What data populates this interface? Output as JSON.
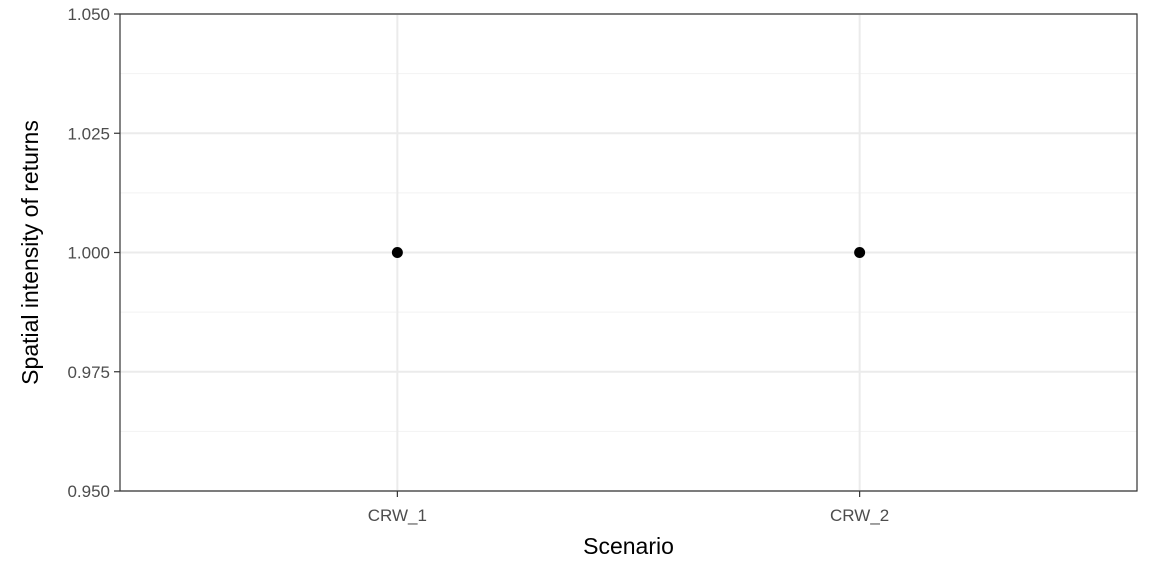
{
  "chart_data": {
    "type": "scatter",
    "title": "",
    "xlabel": "Scenario",
    "ylabel": "Spatial intensity of returns",
    "categories": [
      "CRW_1",
      "CRW_2"
    ],
    "values": [
      1.0,
      1.0
    ],
    "ylim": [
      0.95,
      1.05
    ],
    "yticks": [
      0.95,
      0.975,
      1.0,
      1.025,
      1.05
    ],
    "ytick_labels": [
      "0.950",
      "0.975",
      "1.000",
      "1.025",
      "1.050"
    ],
    "grid": true,
    "legend": "none",
    "colors": {
      "point": "#000000",
      "grid_major": "#ebebeb",
      "grid_minor": "#f2f2f2",
      "panel_border": "#333333",
      "background": "#ffffff"
    }
  }
}
